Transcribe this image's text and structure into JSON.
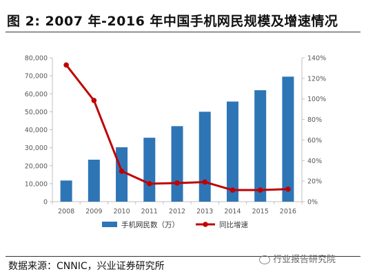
{
  "title": "图  2: 2007 年-2016 年中国手机网民规模及增速情况",
  "source": "数据来源：CNNIC，兴业证券研究所",
  "watermark": "行业报告研究院",
  "colors": {
    "bar": "#2e75b6",
    "line": "#c00000",
    "axis": "#bfbfbf"
  },
  "chart_data": {
    "type": "bar",
    "categories": [
      "2008",
      "2009",
      "2010",
      "2011",
      "2012",
      "2013",
      "2014",
      "2015",
      "2016"
    ],
    "series": [
      {
        "name": "手机网民数（万）",
        "type": "bar",
        "axis": "left",
        "values": [
          11760,
          23344,
          30274,
          35558,
          41997,
          50006,
          55678,
          61981,
          69531
        ]
      },
      {
        "name": "同比增速",
        "type": "line",
        "axis": "right",
        "values": [
          1.33,
          0.985,
          0.297,
          0.175,
          0.181,
          0.191,
          0.113,
          0.113,
          0.122
        ]
      }
    ],
    "ylim_left": [
      0,
      80000
    ],
    "yticks_left": [
      "0",
      "10,000",
      "20,000",
      "30,000",
      "40,000",
      "50,000",
      "60,000",
      "70,000",
      "80,000"
    ],
    "ylim_right": [
      0,
      1.4
    ],
    "yticks_right": [
      "0%",
      "20%",
      "40%",
      "60%",
      "80%",
      "100%",
      "120%",
      "140%"
    ],
    "legend": "bottom-center",
    "grid": false
  }
}
